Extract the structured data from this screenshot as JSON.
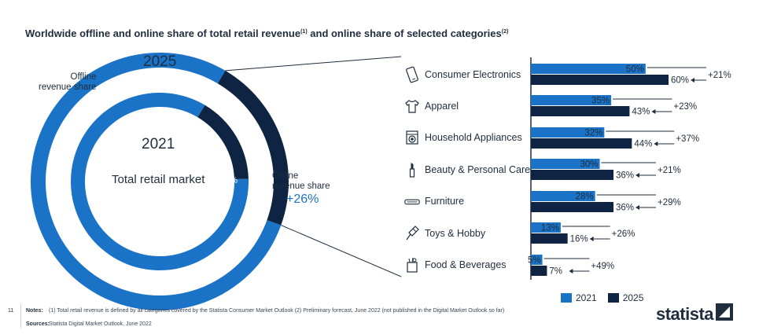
{
  "title": {
    "main": "Worldwide offline and online share of total retail revenue",
    "sup1": "(1)",
    "mid": " and online share of selected categories",
    "sup2": "(2)"
  },
  "colors": {
    "blue_2021": "#1a73c7",
    "navy_2025": "#0f2442",
    "outer_ring_blue": "#1a73c7",
    "line": "#1f2d3d"
  },
  "donut": {
    "year_outer": "2025",
    "year_inner": "2021",
    "center_label": "Total retail market",
    "offline_label_line1": "Offline",
    "offline_label_line2": "revenue share",
    "online_label_line1": "Online",
    "online_label_line2": "revenue share",
    "online_change": "+26%",
    "outer_offline": "78%",
    "outer_online": "22%",
    "inner_offline": "84%",
    "inner_online": "16%"
  },
  "categories": [
    {
      "label": "Consumer Electronics",
      "icon": "smartphone-icon"
    },
    {
      "label": "Apparel",
      "icon": "tshirt-icon"
    },
    {
      "label": "Household Appliances",
      "icon": "washing-machine-icon"
    },
    {
      "label": "Beauty & Personal Care",
      "icon": "lipstick-icon"
    },
    {
      "label": "Furniture",
      "icon": "sofa-icon"
    },
    {
      "label": "Toys & Hobby",
      "icon": "kite-icon"
    },
    {
      "label": "Food & Beverages",
      "icon": "grocery-bag-icon"
    }
  ],
  "chart_data": [
    {
      "type": "pie",
      "subtype": "donut",
      "series": [
        {
          "name": "2025",
          "categories": [
            "Offline revenue share",
            "Online revenue share"
          ],
          "values": [
            78,
            22
          ]
        },
        {
          "name": "2021",
          "categories": [
            "Offline revenue share",
            "Online revenue share"
          ],
          "values": [
            84,
            16
          ]
        }
      ],
      "annotations": [
        "+26%"
      ]
    },
    {
      "type": "bar",
      "orientation": "horizontal",
      "categories": [
        "Consumer Electronics",
        "Apparel",
        "Household Appliances",
        "Beauty & Personal Care",
        "Furniture",
        "Toys & Hobby",
        "Food & Beverages"
      ],
      "series": [
        {
          "name": "2021",
          "values": [
            50,
            35,
            32,
            30,
            28,
            13,
            5
          ]
        },
        {
          "name": "2025",
          "values": [
            60,
            43,
            44,
            36,
            36,
            16,
            7
          ]
        }
      ],
      "value_labels_2021": [
        "50%",
        "35%",
        "32%",
        "30%",
        "28%",
        "13%",
        "5%"
      ],
      "value_labels_2025": [
        "60%",
        "43%",
        "44%",
        "36%",
        "36%",
        "16%",
        "7%"
      ],
      "changes": [
        "+21%",
        "+23%",
        "+37%",
        "+21%",
        "+29%",
        "+26%",
        "+49%"
      ],
      "legend": "bottom",
      "grid": false
    }
  ],
  "footer": {
    "page_number": "11",
    "notes_heading": "Notes:",
    "notes_text": "(1) Total retail revenue is defined by all categories covered by the Statista Consumer Market Outlook (2) Preliminary forecast, June 2022 (not published in the Digital Market Outlook so far)",
    "sources_heading": "Sources:",
    "sources_text": "Statista Digital Market Outlook, June 2022"
  },
  "logo": {
    "text": "statista"
  }
}
